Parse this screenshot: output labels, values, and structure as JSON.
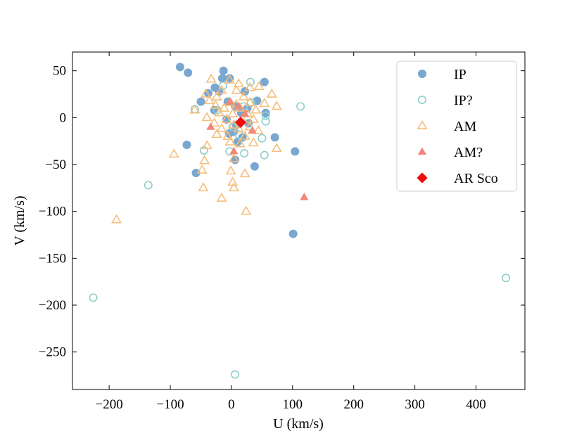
{
  "chart_data": {
    "type": "scatter",
    "title": "",
    "xlabel": "U (km/s)",
    "ylabel": "V (km/s)",
    "xlim": [
      -260,
      480
    ],
    "ylim": [
      -290,
      70
    ],
    "xticks": [
      -200,
      -100,
      0,
      100,
      200,
      300,
      400
    ],
    "yticks": [
      50,
      0,
      -50,
      -100,
      -150,
      -200,
      -250
    ],
    "tick_labels_x": [
      "−200",
      "−100",
      "0",
      "100",
      "200",
      "300",
      "400"
    ],
    "tick_labels_y": [
      "50",
      "0",
      "−50",
      "−100",
      "−150",
      "−200",
      "−250"
    ],
    "legend_position": "top-right",
    "series": [
      {
        "name": "IP",
        "marker": "circle",
        "filled": true,
        "color": "#7aa7d0",
        "points": [
          [
            -84,
            54
          ],
          [
            -71,
            48
          ],
          [
            -13,
            50
          ],
          [
            -3,
            42
          ],
          [
            -15,
            42
          ],
          [
            54,
            38
          ],
          [
            -27,
            32
          ],
          [
            -38,
            26
          ],
          [
            -20,
            28
          ],
          [
            22,
            28
          ],
          [
            -50,
            17
          ],
          [
            -6,
            17
          ],
          [
            42,
            18
          ],
          [
            6,
            12
          ],
          [
            26,
            10
          ],
          [
            -28,
            8
          ],
          [
            16,
            5
          ],
          [
            56,
            5
          ],
          [
            -8,
            -2
          ],
          [
            8,
            -8
          ],
          [
            28,
            -6
          ],
          [
            4,
            -15
          ],
          [
            -4,
            -17
          ],
          [
            18,
            -21
          ],
          [
            71,
            -21
          ],
          [
            10,
            -26
          ],
          [
            -73,
            -29
          ],
          [
            104,
            -36
          ],
          [
            6,
            -45
          ],
          [
            38,
            -52
          ],
          [
            -58,
            -59
          ],
          [
            101,
            -124
          ]
        ]
      },
      {
        "name": "IP?",
        "marker": "circle",
        "filled": false,
        "color": "#8ccfca",
        "points": [
          [
            31,
            38
          ],
          [
            -14,
            34
          ],
          [
            113,
            12
          ],
          [
            -60,
            9
          ],
          [
            -23,
            8
          ],
          [
            32,
            16
          ],
          [
            20,
            12
          ],
          [
            56,
            2
          ],
          [
            56,
            -4
          ],
          [
            2,
            -10
          ],
          [
            12,
            -18
          ],
          [
            50,
            -22
          ],
          [
            -45,
            -35
          ],
          [
            -3,
            -36
          ],
          [
            21,
            -38
          ],
          [
            54,
            -40
          ],
          [
            -136,
            -72
          ],
          [
            -226,
            -192
          ],
          [
            449,
            -171
          ],
          [
            6,
            -274
          ]
        ]
      },
      {
        "name": "AM",
        "marker": "triangle",
        "filled": false,
        "color": "#f5be7a",
        "points": [
          [
            -33,
            41
          ],
          [
            -3,
            40
          ],
          [
            12,
            36
          ],
          [
            45,
            33
          ],
          [
            30,
            32
          ],
          [
            -16,
            29
          ],
          [
            8,
            29
          ],
          [
            -42,
            25
          ],
          [
            66,
            25
          ],
          [
            -24,
            22
          ],
          [
            20,
            22
          ],
          [
            -36,
            18
          ],
          [
            -2,
            16
          ],
          [
            30,
            16
          ],
          [
            54,
            15
          ],
          [
            -26,
            13
          ],
          [
            8,
            14
          ],
          [
            74,
            12
          ],
          [
            -60,
            8
          ],
          [
            -12,
            10
          ],
          [
            14,
            10
          ],
          [
            40,
            8
          ],
          [
            -20,
            5
          ],
          [
            2,
            4
          ],
          [
            26,
            4
          ],
          [
            -40,
            0
          ],
          [
            -8,
            -2
          ],
          [
            18,
            -2
          ],
          [
            36,
            -2
          ],
          [
            -28,
            -6
          ],
          [
            4,
            -8
          ],
          [
            30,
            -10
          ],
          [
            -16,
            -12
          ],
          [
            12,
            -12
          ],
          [
            44,
            -14
          ],
          [
            -24,
            -18
          ],
          [
            -6,
            -20
          ],
          [
            22,
            -20
          ],
          [
            -40,
            -30
          ],
          [
            -2,
            -26
          ],
          [
            14,
            -28
          ],
          [
            36,
            -27
          ],
          [
            74,
            -33
          ],
          [
            -94,
            -39
          ],
          [
            -44,
            -46
          ],
          [
            4,
            -44
          ],
          [
            -48,
            -56
          ],
          [
            -1,
            -57
          ],
          [
            22,
            -60
          ],
          [
            -46,
            -75
          ],
          [
            2,
            -69
          ],
          [
            4,
            -75
          ],
          [
            -16,
            -86
          ],
          [
            24,
            -100
          ],
          [
            -188,
            -109
          ]
        ]
      },
      {
        "name": "AM?",
        "marker": "triangle",
        "filled": true,
        "color": "#f4877a",
        "points": [
          [
            -2,
            17
          ],
          [
            12,
            12
          ],
          [
            22,
            4
          ],
          [
            -34,
            -10
          ],
          [
            34,
            -14
          ],
          [
            4,
            -36
          ],
          [
            119,
            -85
          ]
        ]
      },
      {
        "name": "AR Sco",
        "marker": "diamond",
        "filled": true,
        "color": "#ee0c0c",
        "points": [
          [
            15,
            -5
          ]
        ]
      }
    ]
  }
}
